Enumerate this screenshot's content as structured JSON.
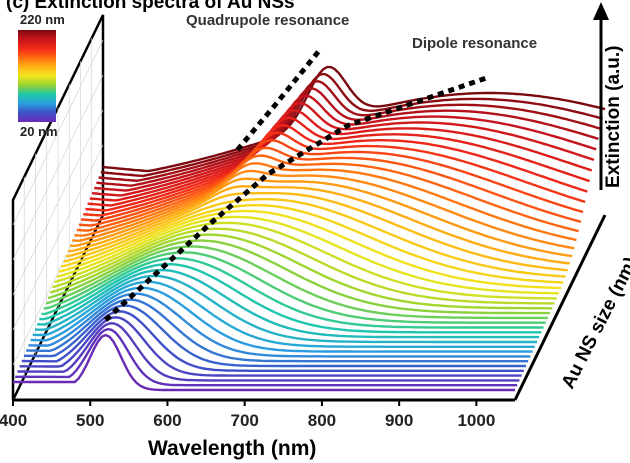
{
  "title": "(c) Extinction spectra of Au NSs",
  "annotations": {
    "quadrupole": "Quadrupole resonance",
    "dipole": "Dipole resonance"
  },
  "colorbar": {
    "max_label": "220 nm",
    "min_label": "20 nm",
    "colors": [
      "#7a0a0f",
      "#c8141c",
      "#f02818",
      "#ff6a10",
      "#ffb414",
      "#f0e61e",
      "#96d232",
      "#1ec8a8",
      "#2aa0e0",
      "#3e50c8",
      "#6a2ab4"
    ]
  },
  "chart_data": {
    "type": "line",
    "title": "(c) Extinction spectra of Au NSs",
    "xlabel": "Wavelength (nm)",
    "ylabel": "Extinction (a.u.)",
    "zlabel": "Au NS size (nm)",
    "x_ticks": [
      400,
      500,
      600,
      700,
      800,
      900,
      1000
    ],
    "xlim": [
      400,
      1050
    ],
    "size_range_nm": [
      20,
      220
    ],
    "dipole_peak_path": [
      [
        520,
        20
      ],
      [
        565,
        60
      ],
      [
        610,
        100
      ],
      [
        660,
        140
      ],
      [
        740,
        180
      ],
      [
        900,
        220
      ]
    ],
    "quadrupole_peak_path": [
      [
        615,
        150
      ],
      [
        650,
        175
      ],
      [
        690,
        205
      ]
    ],
    "grid": true
  }
}
